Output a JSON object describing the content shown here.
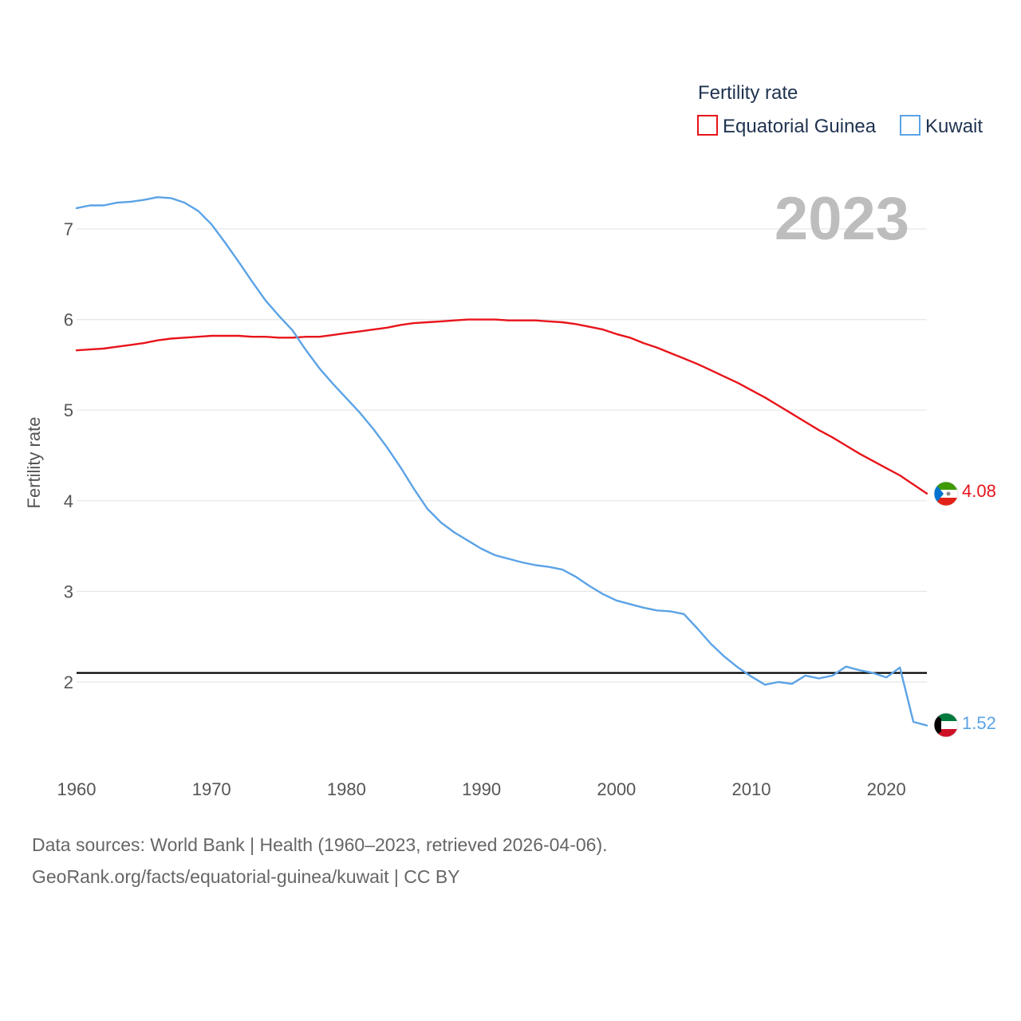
{
  "chart_data": {
    "type": "line",
    "title": "Fertility rate",
    "xlabel": "",
    "ylabel": "Fertility rate",
    "year_label": "2023",
    "xlim": [
      1960,
      2023
    ],
    "ylim": [
      1.2,
      7.6
    ],
    "x_ticks": [
      1960,
      1970,
      1980,
      1990,
      2000,
      2010,
      2020
    ],
    "y_ticks": [
      2,
      3,
      4,
      5,
      6,
      7
    ],
    "grid": true,
    "legend_position": "top-right",
    "reference_line": {
      "value": 2.1,
      "color": "#000000"
    },
    "x": [
      1960,
      1961,
      1962,
      1963,
      1964,
      1965,
      1966,
      1967,
      1968,
      1969,
      1970,
      1971,
      1972,
      1973,
      1974,
      1975,
      1976,
      1977,
      1978,
      1979,
      1980,
      1981,
      1982,
      1983,
      1984,
      1985,
      1986,
      1987,
      1988,
      1989,
      1990,
      1991,
      1992,
      1993,
      1994,
      1995,
      1996,
      1997,
      1998,
      1999,
      2000,
      2001,
      2002,
      2003,
      2004,
      2005,
      2006,
      2007,
      2008,
      2009,
      2010,
      2011,
      2012,
      2013,
      2014,
      2015,
      2016,
      2017,
      2018,
      2019,
      2020,
      2021,
      2022,
      2023
    ],
    "series": [
      {
        "name": "Equatorial Guinea",
        "color": "#e8141b",
        "end_value_label": "4.08",
        "values": [
          5.66,
          5.67,
          5.68,
          5.7,
          5.72,
          5.74,
          5.77,
          5.79,
          5.8,
          5.81,
          5.82,
          5.82,
          5.82,
          5.81,
          5.81,
          5.8,
          5.8,
          5.81,
          5.81,
          5.83,
          5.85,
          5.87,
          5.89,
          5.91,
          5.94,
          5.96,
          5.97,
          5.98,
          5.99,
          6.0,
          6.0,
          6.0,
          5.99,
          5.99,
          5.99,
          5.98,
          5.97,
          5.95,
          5.92,
          5.89,
          5.84,
          5.8,
          5.74,
          5.69,
          5.63,
          5.57,
          5.51,
          5.44,
          5.37,
          5.3,
          5.22,
          5.14,
          5.05,
          4.96,
          4.87,
          4.78,
          4.7,
          4.61,
          4.52,
          4.44,
          4.36,
          4.28,
          4.18,
          4.08
        ]
      },
      {
        "name": "Kuwait",
        "color": "#5ba3e6",
        "end_value_label": "1.52",
        "values": [
          7.23,
          7.26,
          7.26,
          7.29,
          7.3,
          7.32,
          7.35,
          7.34,
          7.29,
          7.2,
          7.05,
          6.85,
          6.64,
          6.42,
          6.21,
          6.04,
          5.88,
          5.66,
          5.46,
          5.29,
          5.13,
          4.97,
          4.79,
          4.59,
          4.37,
          4.13,
          3.91,
          3.76,
          3.65,
          3.56,
          3.47,
          3.4,
          3.36,
          3.32,
          3.29,
          3.27,
          3.24,
          3.16,
          3.06,
          2.97,
          2.9,
          2.86,
          2.82,
          2.79,
          2.78,
          2.75,
          2.59,
          2.42,
          2.28,
          2.16,
          2.06,
          1.97,
          2.0,
          1.98,
          2.07,
          2.04,
          2.07,
          2.17,
          2.13,
          2.1,
          2.05,
          2.16,
          1.56,
          1.52
        ]
      }
    ]
  },
  "footer": {
    "line1": "Data sources: World Bank | Health (1960–2023, retrieved 2026-04-06).",
    "line2": "GeoRank.org/facts/equatorial-guinea/kuwait | CC BY"
  },
  "flags": {
    "equatorial_guinea": "flag-equatorial-guinea-icon",
    "kuwait": "flag-kuwait-icon"
  }
}
